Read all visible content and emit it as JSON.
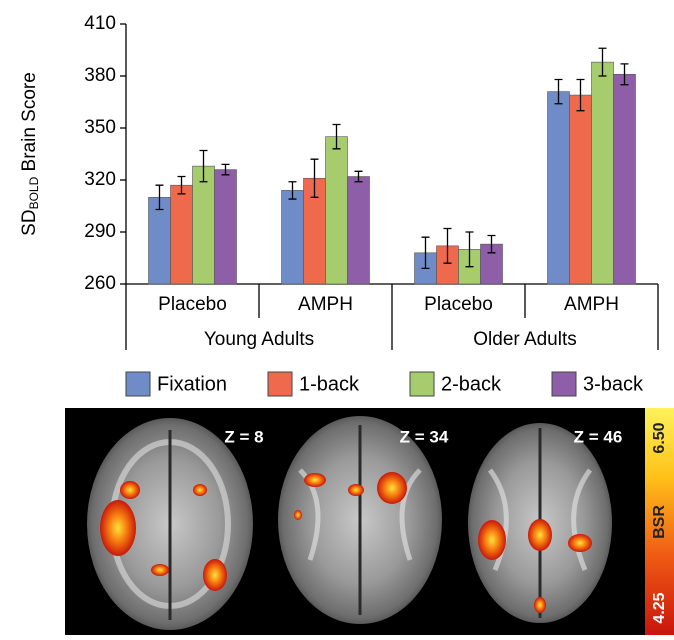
{
  "chart_data": {
    "type": "bar",
    "y_label": {
      "main": "SD",
      "sub": "BOLD",
      "rest": " Brain Score"
    },
    "categories": [
      "Placebo",
      "AMPH",
      "Placebo",
      "AMPH"
    ],
    "group_labels": [
      "Young Adults",
      "Older Adults"
    ],
    "series": [
      {
        "name": "Fixation",
        "color": "#6f8cc8",
        "values": [
          310,
          314,
          278,
          371
        ],
        "errors": [
          7,
          5,
          9,
          7
        ]
      },
      {
        "name": "1-back",
        "color": "#ef6a4d",
        "values": [
          317,
          321,
          282,
          369
        ],
        "errors": [
          5,
          11,
          10,
          9
        ]
      },
      {
        "name": "2-back",
        "color": "#a6cc6e",
        "values": [
          328,
          345,
          280,
          388
        ],
        "errors": [
          9,
          7,
          10,
          8
        ]
      },
      {
        "name": "3-back",
        "color": "#8e5fa8",
        "values": [
          326,
          322,
          283,
          381
        ],
        "errors": [
          3,
          3,
          5,
          6
        ]
      }
    ],
    "ylim": [
      260,
      410
    ],
    "yticks": [
      260,
      290,
      320,
      350,
      380,
      410
    ],
    "grid": false
  },
  "brain_panel": {
    "slices": [
      "Z = 8",
      "Z = 34",
      "Z = 46"
    ],
    "colorbar": {
      "max": "6.50",
      "label": "BSR",
      "min": "4.25"
    }
  }
}
